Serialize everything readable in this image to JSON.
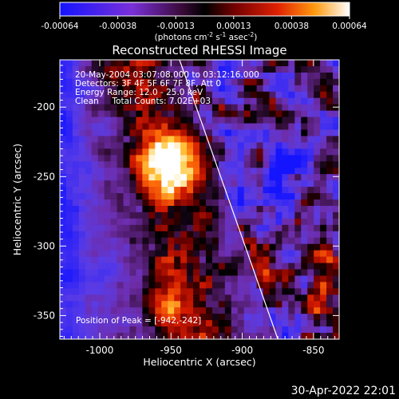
{
  "colorbar": {
    "ticks": [
      "-0.00064",
      "-0.00038",
      "-0.00013",
      "0.00013",
      "0.00038",
      "0.00064"
    ],
    "units_main": "(photons cm",
    "units_sup1": "-2",
    "units_mid": " s",
    "units_sup2": "-1",
    "units_end": " asec",
    "units_sup3": "-2",
    "units_close": ")",
    "colors": [
      "#1a1aff",
      "#6a2be0",
      "#9a3fc8",
      "#2a0a2a",
      "#000000",
      "#5a0000",
      "#d01000",
      "#ff6a00",
      "#ffd040",
      "#ffffff"
    ]
  },
  "plot": {
    "title": "Reconstructed RHESSI Image",
    "info_lines": [
      "20-May-2004 03:07:08.000 to 03:12:16.000",
      "Detectors: 3F 4F 5F 6F 7F 8F, Att 0",
      "Energy Range: 12.0 - 25.0 keV",
      "Clean     Total Counts: 7.02E+03"
    ],
    "peak_label": "Position of Peak = [-942,-242]",
    "xlabel": "Heliocentric X (arcsec)",
    "ylabel": "Heliocentric Y (arcsec)",
    "x_ticks": [
      "-1000",
      "-950",
      "-900",
      "-850"
    ],
    "y_ticks": [
      "-200",
      "-250",
      "-300",
      "-350"
    ],
    "x_range": [
      -1028,
      -832
    ],
    "y_range": [
      -166,
      -367
    ],
    "x_tick_values": [
      -1000,
      -950,
      -900,
      -850
    ],
    "y_tick_values": [
      -200,
      -250,
      -300,
      -350
    ],
    "limb_x": [
      -944,
      -875
    ],
    "limb_y": [
      -166,
      -367
    ]
  },
  "footer": {
    "timestamp": "30-Apr-2022 22:01"
  }
}
